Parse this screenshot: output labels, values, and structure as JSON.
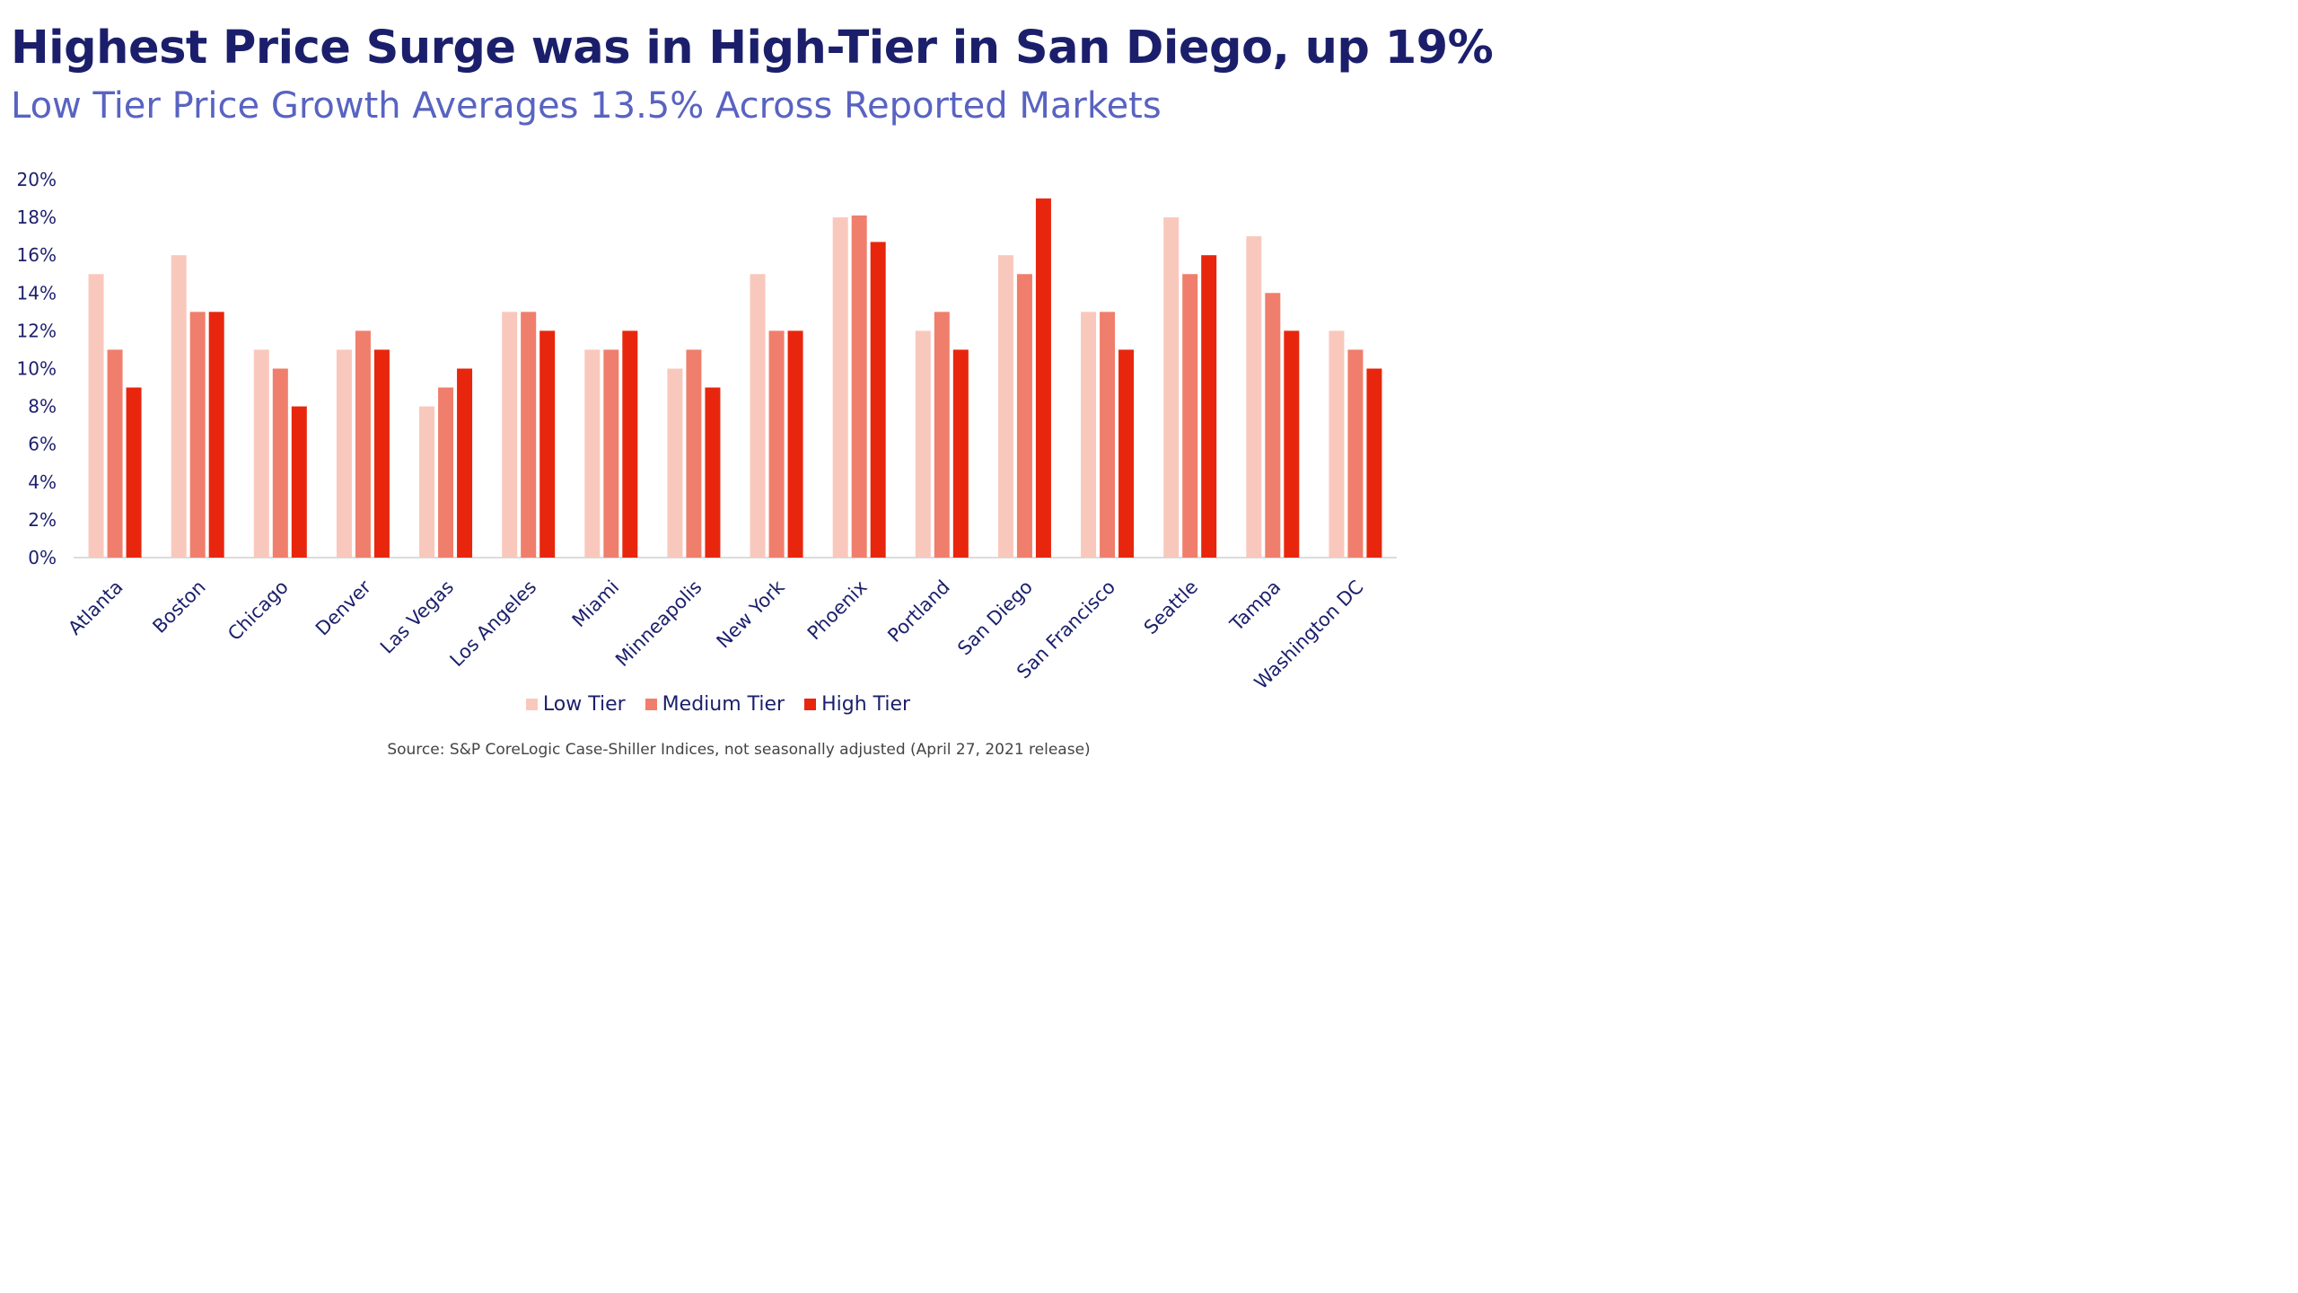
{
  "title": "Highest Price Surge was in High-Tier in San Diego, up 19%",
  "subtitle": "Low Tier Price Growth Averages 13.5% Across Reported Markets",
  "source": "Source:  S&P CoreLogic Case-Shiller Indices, not seasonally adjusted (April 27, 2021 release)",
  "colors": {
    "low": "#f9c8bd",
    "medium": "#f07e6c",
    "high": "#e8260e",
    "text": "#1b1f6b",
    "axis": "#d0d0d0"
  },
  "chart_data": {
    "type": "bar",
    "categories": [
      "Atlanta",
      "Boston",
      "Chicago",
      "Denver",
      "Las Vegas",
      "Los Angeles",
      "Miami",
      "Minneapolis",
      "New York",
      "Phoenix",
      "Portland",
      "San Diego",
      "San Francisco",
      "Seattle",
      "Tampa",
      "Washington DC"
    ],
    "series": [
      {
        "name": "Low Tier",
        "values": [
          15,
          16,
          11,
          11,
          8,
          13,
          11,
          10,
          15,
          18,
          12,
          16,
          13,
          18,
          17,
          12
        ]
      },
      {
        "name": "Medium Tier",
        "values": [
          11,
          13,
          10,
          12,
          9,
          13,
          11,
          11,
          12,
          18.1,
          13,
          15,
          13,
          15,
          14,
          11
        ]
      },
      {
        "name": "High Tier",
        "values": [
          9,
          13,
          8,
          11,
          10,
          12,
          12,
          9,
          12,
          16.7,
          11,
          19,
          11,
          16,
          12,
          10
        ]
      }
    ],
    "yticks": [
      "0%",
      "2%",
      "4%",
      "6%",
      "8%",
      "10%",
      "12%",
      "14%",
      "16%",
      "18%",
      "20%"
    ],
    "ylim": [
      0,
      20
    ],
    "grid": false,
    "legend_position": "bottom"
  }
}
